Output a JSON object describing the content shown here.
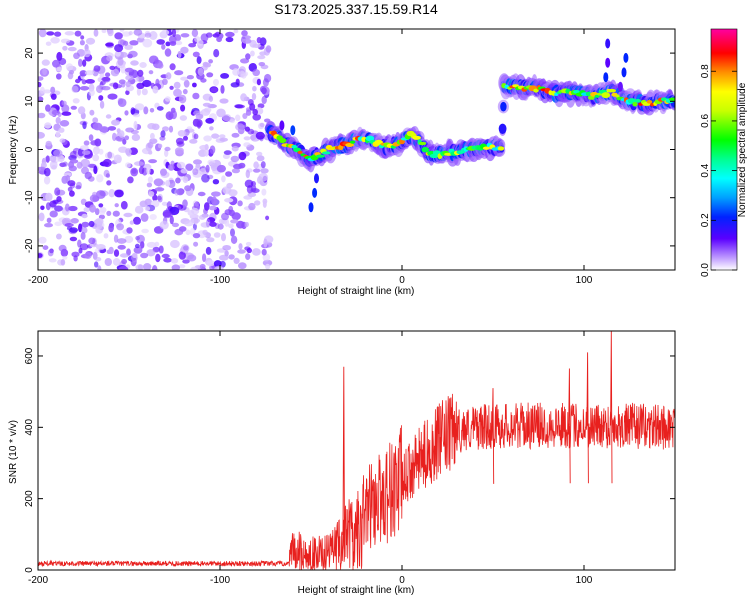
{
  "title": "S173.2025.337.15.59.R14",
  "chart_data": [
    {
      "type": "heatmap",
      "name": "spectrogram",
      "xlabel": "Height of straight line (km)",
      "ylabel": "Frequency (Hz)",
      "xlim": [
        -200,
        150
      ],
      "ylim": [
        -25,
        25
      ],
      "xticks": [
        -200,
        -100,
        0,
        100
      ],
      "yticks": [
        -20,
        -10,
        0,
        10,
        20
      ],
      "colorbar": {
        "label": "Normalized spectral amplitude",
        "range": [
          0,
          0.97
        ],
        "ticks": [
          0.0,
          0.2,
          0.4,
          0.6,
          0.8
        ]
      },
      "noise_region_km": [
        -200,
        -73
      ],
      "ridge": [
        {
          "x": -72,
          "f": 3.5
        },
        {
          "x": -65,
          "f": 1.5
        },
        {
          "x": -58,
          "f": 0
        },
        {
          "x": -52,
          "f": -2
        },
        {
          "x": -45,
          "f": -1
        },
        {
          "x": -38,
          "f": 0.5
        },
        {
          "x": -30,
          "f": 1
        },
        {
          "x": -22,
          "f": 2.5
        },
        {
          "x": -15,
          "f": 1.5
        },
        {
          "x": -8,
          "f": 0.5
        },
        {
          "x": 0,
          "f": 1.5
        },
        {
          "x": 5,
          "f": 3
        },
        {
          "x": 10,
          "f": 1.5
        },
        {
          "x": 15,
          "f": -1
        },
        {
          "x": 22,
          "f": -1
        },
        {
          "x": 30,
          "f": -0.5
        },
        {
          "x": 38,
          "f": 0
        },
        {
          "x": 46,
          "f": 0.5
        },
        {
          "x": 55,
          "f": 0.5
        },
        {
          "x": 56,
          "f": 13
        },
        {
          "x": 65,
          "f": 13
        },
        {
          "x": 75,
          "f": 12.5
        },
        {
          "x": 85,
          "f": 11.5
        },
        {
          "x": 95,
          "f": 12
        },
        {
          "x": 105,
          "f": 11
        },
        {
          "x": 115,
          "f": 12
        },
        {
          "x": 125,
          "f": 10
        },
        {
          "x": 135,
          "f": 9.5
        },
        {
          "x": 142,
          "f": 10
        },
        {
          "x": 150,
          "f": 10
        }
      ]
    },
    {
      "type": "line",
      "name": "snr",
      "xlabel": "Height of straight line (km)",
      "ylabel": "SNR (10 * v/v)",
      "xlim": [
        -200,
        150
      ],
      "ylim": [
        0,
        670
      ],
      "xticks": [
        -200,
        -100,
        0,
        100
      ],
      "yticks": [
        0,
        200,
        400,
        600
      ],
      "series": [
        {
          "name": "SNR",
          "color": "#e8201e",
          "envelope_x": [
            -200,
            -62,
            -60,
            -50,
            -40,
            -30,
            -20,
            -10,
            0,
            10,
            20,
            30,
            40,
            60,
            80,
            100,
            120,
            150
          ],
          "envelope_mean": [
            18,
            18,
            60,
            45,
            50,
            110,
            170,
            210,
            250,
            310,
            360,
            390,
            400,
            405,
            405,
            405,
            405,
            400
          ],
          "spikes": [
            {
              "x": -32,
              "y": 570
            },
            {
              "x": 115,
              "y": 672
            },
            {
              "x": 102,
              "y": 610
            },
            {
              "x": 92,
              "y": 565
            },
            {
              "x": 50,
              "y": 510
            }
          ]
        }
      ]
    }
  ]
}
